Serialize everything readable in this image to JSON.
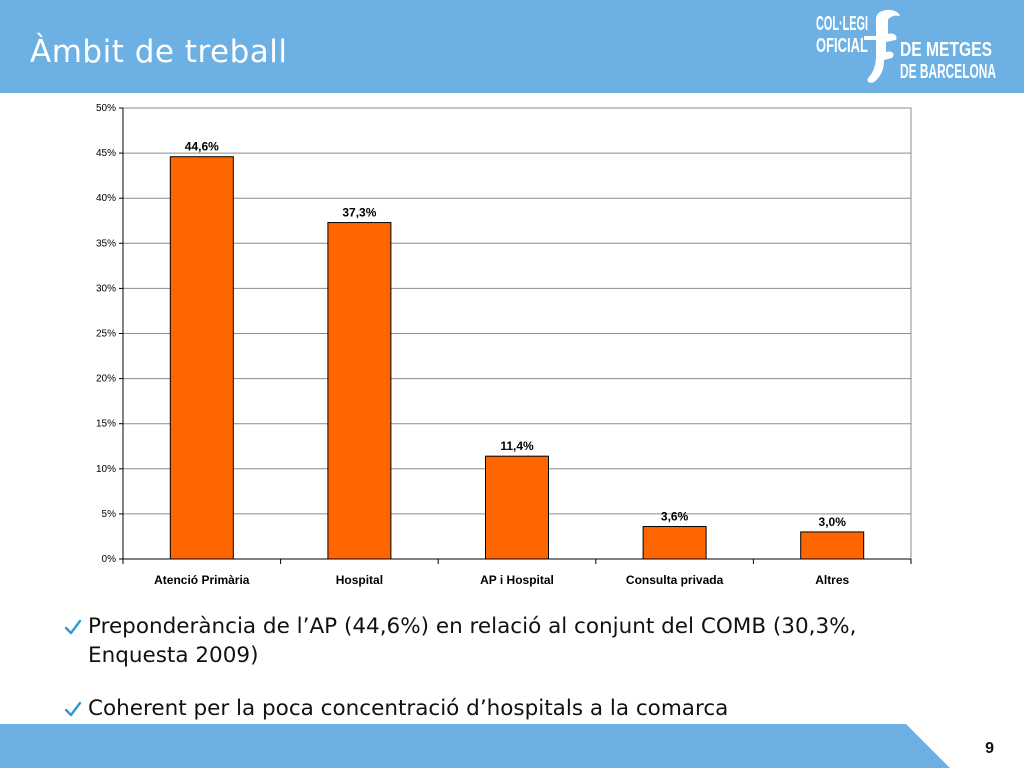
{
  "slide": {
    "title": "Àmbit de treball",
    "page_number": "9"
  },
  "logo": {
    "line1": "COL·LEGI",
    "line2": "OFICIAL",
    "line3": "DE METGES",
    "line4": "DE BARCELONA"
  },
  "colors": {
    "header": "#6cb0e4",
    "bar_fill": "#ff6600",
    "bar_stroke": "#000000",
    "gridline": "#8c8c8c",
    "check": "#2e9bd6"
  },
  "bullets": [
    {
      "text": "Preponderància de l’AP (44,6%) en relació al conjunt del COMB (30,3%, Enquesta 2009)",
      "icon": "check-icon"
    },
    {
      "text": "Coherent per la poca concentració d’hospitals a la comarca",
      "icon": "check-icon"
    }
  ],
  "chart_data": {
    "type": "bar",
    "title": "",
    "xlabel": "",
    "ylabel": "",
    "categories": [
      "Atenció Primària",
      "Hospital",
      "AP i Hospital",
      "Consulta privada",
      "Altres"
    ],
    "values": [
      44.6,
      37.3,
      11.4,
      3.6,
      3.0
    ],
    "data_labels": [
      "44,6%",
      "37,3%",
      "11,4%",
      "3,6%",
      "3,0%"
    ],
    "ylim": [
      0,
      50
    ],
    "yticks": [
      0,
      5,
      10,
      15,
      20,
      25,
      30,
      35,
      40,
      45,
      50
    ],
    "ytick_labels": [
      "0%",
      "5%",
      "10%",
      "15%",
      "20%",
      "25%",
      "30%",
      "35%",
      "40%",
      "45%",
      "50%"
    ],
    "grid": true,
    "legend": "none"
  }
}
